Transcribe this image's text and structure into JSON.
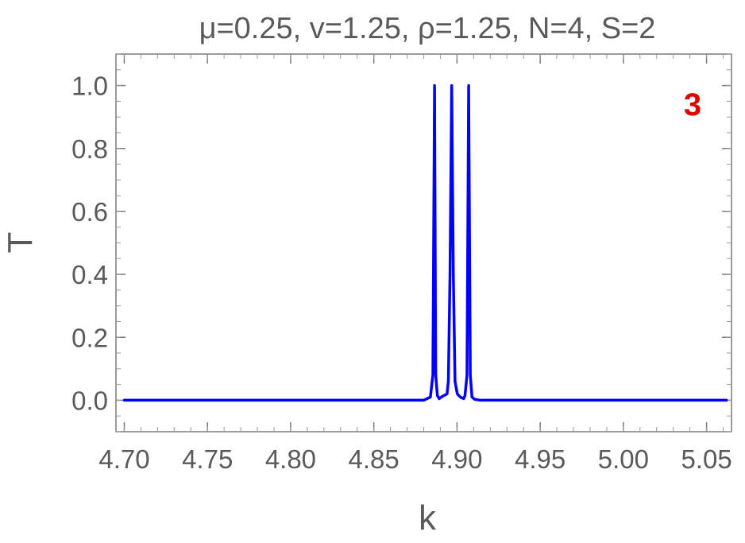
{
  "chart_data": {
    "type": "line",
    "title": "μ=0.25, v=1.25, ρ=1.25, N=4, S=2",
    "xlabel": "k",
    "ylabel": "T",
    "panel_label": "3",
    "xlim": [
      4.695,
      5.065
    ],
    "ylim": [
      -0.1,
      1.1
    ],
    "x_ticks": [
      4.7,
      4.75,
      4.8,
      4.85,
      4.9,
      4.95,
      5.0,
      5.05
    ],
    "x_tick_labels": [
      "4.70",
      "4.75",
      "4.80",
      "4.85",
      "4.90",
      "4.95",
      "5.00",
      "5.05"
    ],
    "y_ticks": [
      0.0,
      0.2,
      0.4,
      0.6,
      0.8,
      1.0
    ],
    "y_tick_labels": [
      "0.0",
      "0.2",
      "0.4",
      "0.6",
      "0.8",
      "1.0"
    ],
    "grid": false,
    "line_color": "#0000ff",
    "series": [
      {
        "x": [
          4.7,
          4.88,
          4.884,
          4.8855,
          4.8865,
          4.8872,
          4.8882,
          4.8893,
          4.8905,
          4.894,
          4.8948,
          4.8958,
          4.8968,
          4.8978,
          4.8988,
          4.9002,
          4.902,
          4.904,
          4.9048,
          4.906,
          4.907,
          4.908,
          4.909,
          4.9105,
          4.914,
          5.062
        ],
        "y": [
          0.0,
          0.0,
          0.01,
          0.08,
          1.0,
          0.08,
          0.015,
          0.005,
          0.01,
          0.02,
          0.06,
          0.4,
          1.0,
          0.4,
          0.06,
          0.02,
          0.01,
          0.005,
          0.015,
          0.08,
          1.0,
          0.08,
          0.01,
          0.003,
          0.0,
          0.0
        ]
      }
    ]
  }
}
